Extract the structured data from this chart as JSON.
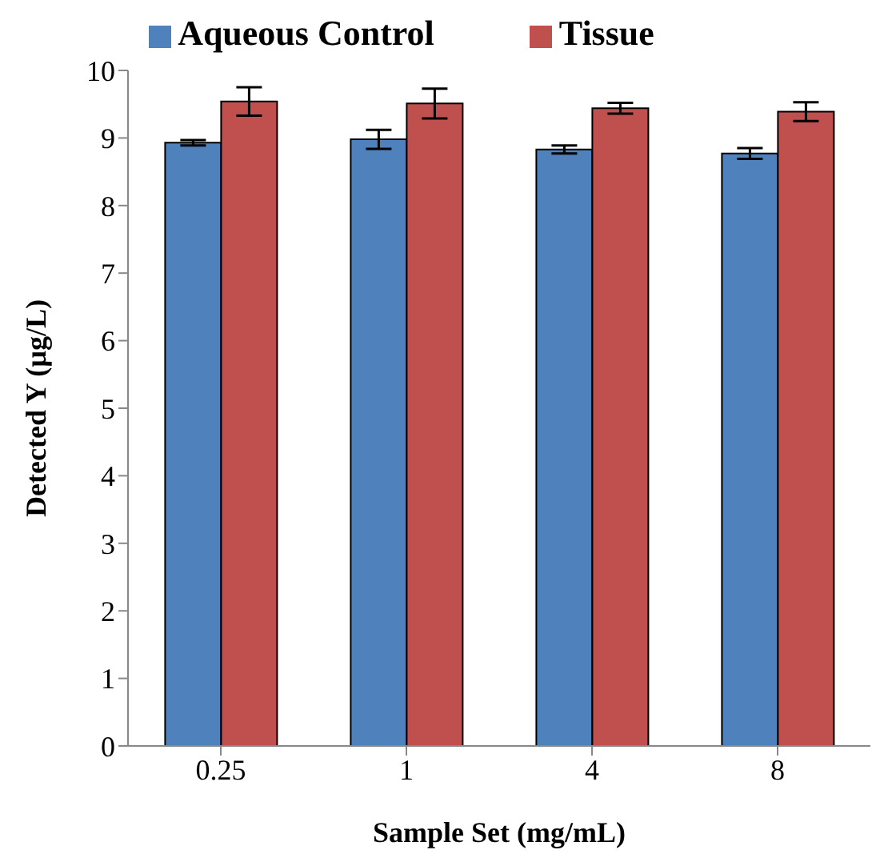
{
  "chart_data": {
    "type": "bar",
    "xlabel": "Sample Set (mg/mL)",
    "ylabel": "Detected Y (µg/L)",
    "categories": [
      "0.25",
      "1",
      "4",
      "8"
    ],
    "series": [
      {
        "name": "Aqueous Control",
        "color": "#4f81bd",
        "values": [
          8.93,
          8.98,
          8.83,
          8.77
        ],
        "errors": [
          0.04,
          0.14,
          0.06,
          0.08
        ]
      },
      {
        "name": "Tissue",
        "color": "#c0504d",
        "values": [
          9.54,
          9.51,
          9.44,
          9.39
        ],
        "errors": [
          0.21,
          0.22,
          0.08,
          0.14
        ]
      }
    ],
    "ylim": [
      0,
      10
    ],
    "yticks": [
      0,
      1,
      2,
      3,
      4,
      5,
      6,
      7,
      8,
      9,
      10
    ],
    "grid": false,
    "legend": "top"
  }
}
